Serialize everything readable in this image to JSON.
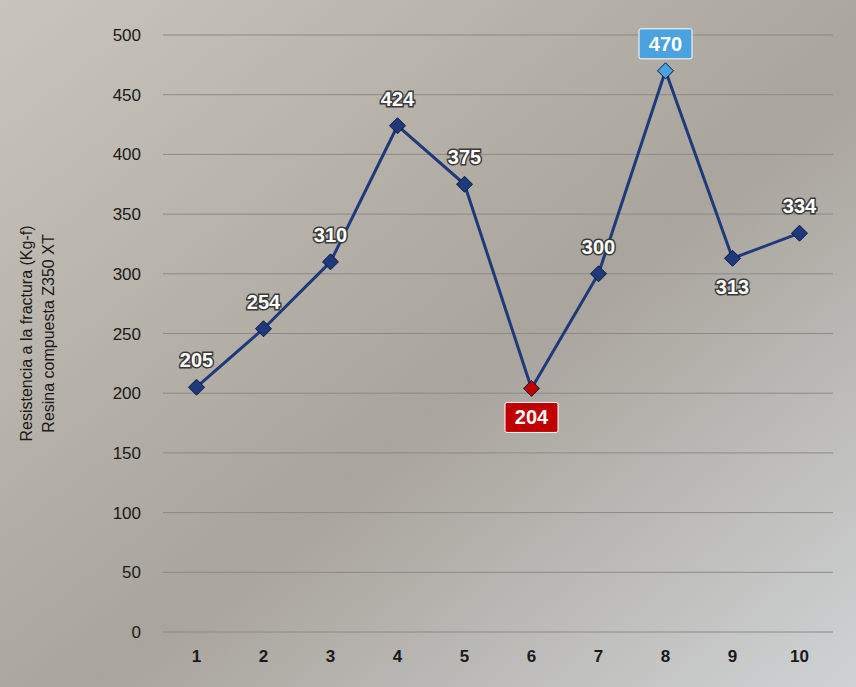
{
  "chart_data": {
    "type": "line",
    "ylabel": [
      "Resistencia a la fractura (Kg-f)",
      "Resina compuesta Z350 XT"
    ],
    "categories": [
      "1",
      "2",
      "3",
      "4",
      "5",
      "6",
      "7",
      "8",
      "9",
      "10"
    ],
    "values": [
      205,
      254,
      310,
      424,
      375,
      204,
      300,
      470,
      313,
      334
    ],
    "color": "#1f3a7a",
    "colors": [
      "#1f3a7a",
      "#1f3a7a",
      "#1f3a7a",
      "#1f3a7a",
      "#1f3a7a",
      "#c00000",
      "#1f3a7a",
      "#4aa3df",
      "#1f3a7a",
      "#1f3a7a"
    ],
    "marker": "diamond",
    "ylim": [
      0,
      500
    ],
    "yticks": [
      0,
      50,
      100,
      150,
      200,
      250,
      300,
      350,
      400,
      450,
      500
    ],
    "grid": true,
    "data_labels": true
  }
}
